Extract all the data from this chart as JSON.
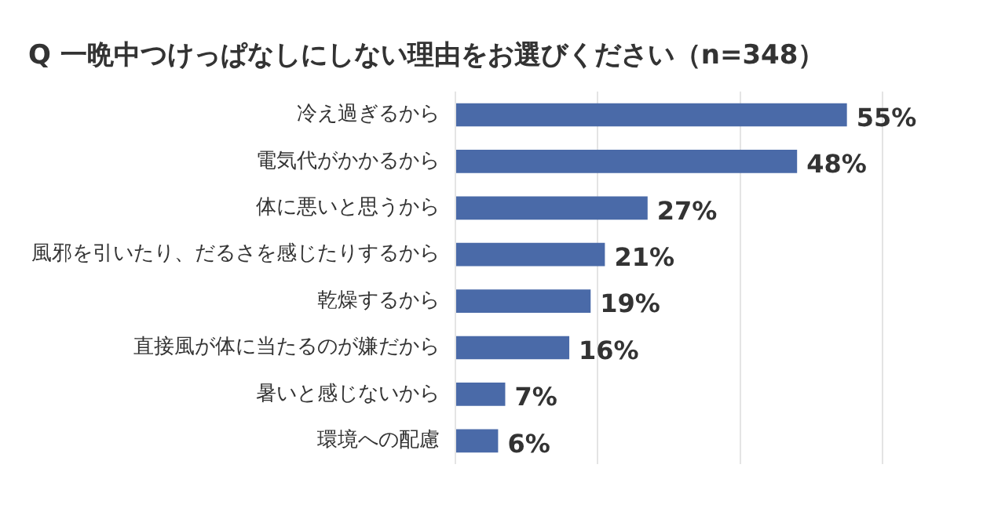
{
  "chart_data": {
    "type": "bar",
    "orientation": "horizontal",
    "title": "Q 一晩中つけっぱなしにしない理由をお選びください（n=348）",
    "categories": [
      "冷え過ぎるから",
      "電気代がかかるから",
      "体に悪いと思うから",
      "風邪を引いたり、だるさを感じたりするから",
      "乾燥するから",
      "直接風が体に当たるのが嫌だから",
      "暑いと感じないから",
      "環境への配慮"
    ],
    "values": [
      55,
      48,
      27,
      21,
      19,
      16,
      7,
      6
    ],
    "value_labels": [
      "55%",
      "48%",
      "27%",
      "21%",
      "19%",
      "16%",
      "7%",
      "6%"
    ],
    "color": "#4a6aa8",
    "xlim": [
      0,
      60
    ],
    "xticks": [
      {
        "value": 0,
        "label": null
      },
      {
        "value": 20,
        "label": null
      },
      {
        "value": 40,
        "label": null
      },
      {
        "value": 60,
        "label": null
      }
    ],
    "grid": "x",
    "legend": false,
    "tick_labels": "y"
  }
}
